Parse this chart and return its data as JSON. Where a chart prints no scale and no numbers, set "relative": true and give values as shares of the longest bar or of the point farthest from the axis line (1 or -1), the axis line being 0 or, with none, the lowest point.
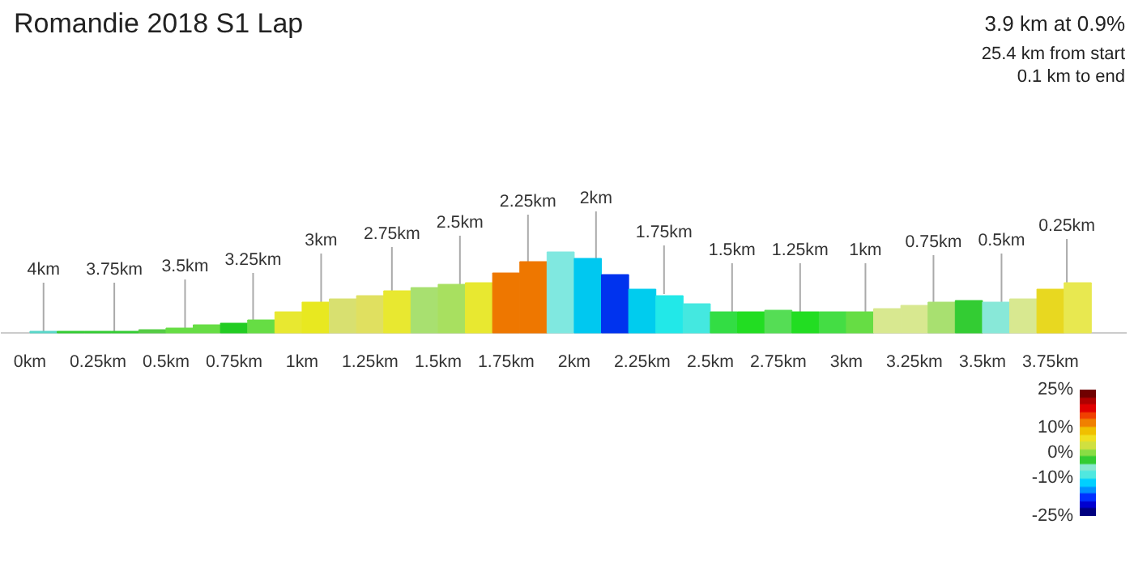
{
  "chart_data": {
    "type": "bar",
    "title": "Romandie 2018 S1 Lap",
    "relative": true,
    "x": [
      0.05,
      0.15,
      0.25,
      0.35,
      0.45,
      0.55,
      0.65,
      0.75,
      0.85,
      0.95,
      1.05,
      1.15,
      1.25,
      1.35,
      1.45,
      1.55,
      1.65,
      1.75,
      1.85,
      1.95,
      2.05,
      2.15,
      2.25,
      2.35,
      2.45,
      2.55,
      2.65,
      2.75,
      2.85,
      2.95,
      3.05,
      3.15,
      3.25,
      3.35,
      3.45,
      3.55,
      3.65,
      3.75,
      3.85
    ],
    "values": [
      0.02,
      0.02,
      0.02,
      0.02,
      0.04,
      0.06,
      0.1,
      0.12,
      0.16,
      0.26,
      0.38,
      0.42,
      0.46,
      0.52,
      0.56,
      0.6,
      0.62,
      0.74,
      0.88,
      1,
      0.92,
      0.72,
      0.54,
      0.46,
      0.36,
      0.26,
      0.26,
      0.28,
      0.26,
      0.26,
      0.26,
      0.3,
      0.34,
      0.38,
      0.4,
      0.38,
      0.42,
      0.54,
      0.62
    ],
    "colors": [
      "#59d6c8",
      "#33cc33",
      "#33cc33",
      "#33cc33",
      "#55cc44",
      "#66dd44",
      "#66dd44",
      "#22cc22",
      "#66dd44",
      "#e8e830",
      "#e8e820",
      "#d8e070",
      "#e0e060",
      "#e8e830",
      "#a8e070",
      "#a8e060",
      "#e8e830",
      "#ee7700",
      "#ee7700",
      "#80e8e0",
      "#00c8f0",
      "#0033ee",
      "#00ccee",
      "#22e8e8",
      "#44e8e0",
      "#33dd44",
      "#22dd22",
      "#55dd55",
      "#22dd22",
      "#44dd44",
      "#66dd44",
      "#d8e890",
      "#d8e890",
      "#a8e070",
      "#33cc33",
      "#88e8d8",
      "#d8e890",
      "#e8d820",
      "#e8e850"
    ],
    "xlim": [
      -0.107,
      4.03
    ],
    "xticks": [
      {
        "value": 0,
        "label": "0km"
      },
      {
        "value": 0.25,
        "label": "0.25km"
      },
      {
        "value": 0.5,
        "label": "0.5km"
      },
      {
        "value": 0.75,
        "label": "0.75km"
      },
      {
        "value": 1,
        "label": "1km"
      },
      {
        "value": 1.25,
        "label": "1.25km"
      },
      {
        "value": 1.5,
        "label": "1.5km"
      },
      {
        "value": 1.75,
        "label": "1.75km"
      },
      {
        "value": 2,
        "label": "2km"
      },
      {
        "value": 2.25,
        "label": "2.25km"
      },
      {
        "value": 2.5,
        "label": "2.5km"
      },
      {
        "value": 2.75,
        "label": "2.75km"
      },
      {
        "value": 3,
        "label": "3km"
      },
      {
        "value": 3.25,
        "label": "3.25km"
      },
      {
        "value": 3.5,
        "label": "3.5km"
      },
      {
        "value": 3.75,
        "label": "3.75km"
      }
    ],
    "clim": [
      -25,
      25
    ],
    "cticks": [
      {
        "value": 25,
        "label": "25%"
      },
      {
        "value": 10,
        "label": "10%"
      },
      {
        "value": 0,
        "label": "0%"
      },
      {
        "value": -10,
        "label": "-10%"
      },
      {
        "value": -25,
        "label": "-25%"
      }
    ],
    "annotations": [
      "3.9 km at 0.9%",
      "25.4 km from start",
      "0.1 km to end",
      {
        "text": "4km",
        "x": 0.05,
        "y": 0.02
      },
      {
        "text": "3.75km",
        "x": 0.31,
        "y": 0.02
      },
      {
        "text": "3.5km",
        "x": 0.57,
        "y": 0.06
      },
      {
        "text": "3.25km",
        "x": 0.82,
        "y": 0.14
      },
      {
        "text": "3km",
        "x": 1.07,
        "y": 0.38
      },
      {
        "text": "2.75km",
        "x": 1.33,
        "y": 0.46
      },
      {
        "text": "2.5km",
        "x": 1.58,
        "y": 0.6
      },
      {
        "text": "2.25km",
        "x": 1.83,
        "y": 0.86
      },
      {
        "text": "2km",
        "x": 2.08,
        "y": 0.9
      },
      {
        "text": "1.75km",
        "x": 2.33,
        "y": 0.48
      },
      {
        "text": "1.5km",
        "x": 2.58,
        "y": 0.26
      },
      {
        "text": "1.25km",
        "x": 2.83,
        "y": 0.26
      },
      {
        "text": "1km",
        "x": 3.07,
        "y": 0.26
      },
      {
        "text": "0.75km",
        "x": 3.32,
        "y": 0.36
      },
      {
        "text": "0.5km",
        "x": 3.57,
        "y": 0.38
      },
      {
        "text": "0.25km",
        "x": 3.81,
        "y": 0.56
      }
    ],
    "grid": false
  }
}
